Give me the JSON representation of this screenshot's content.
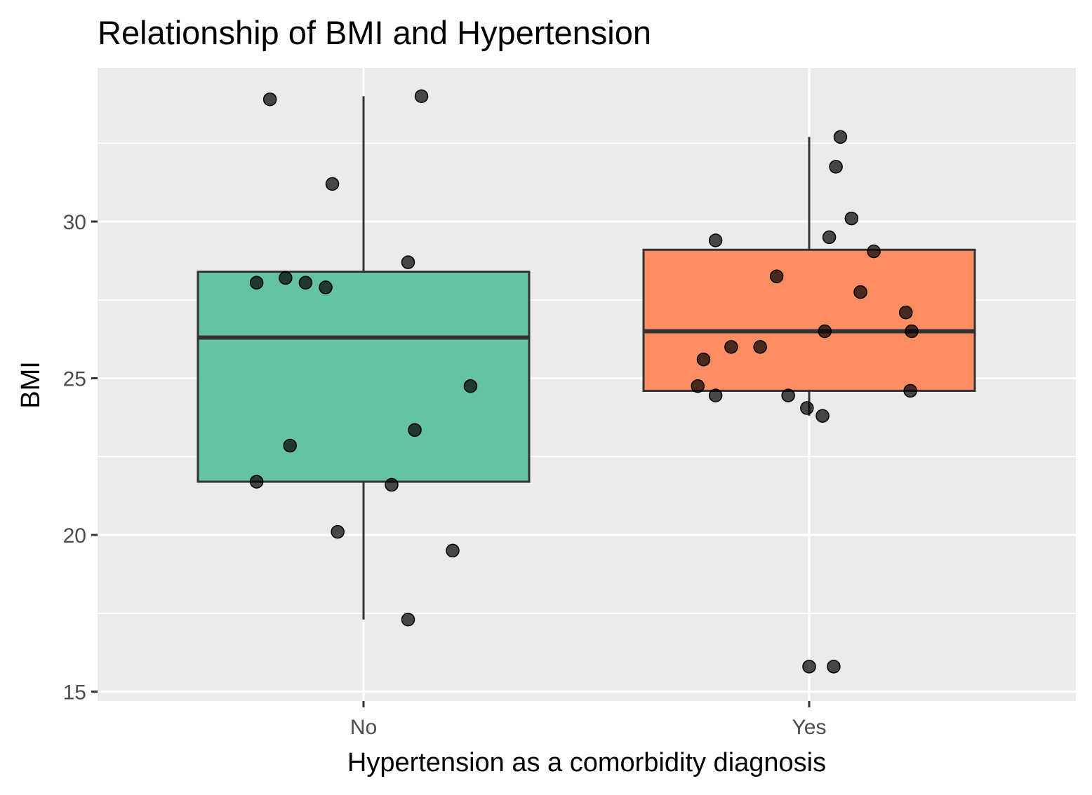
{
  "chart_data": {
    "type": "box",
    "title": "Relationship of BMI and Hypertension",
    "xlabel": "Hypertension as a comorbidity diagnosis",
    "ylabel": "BMI",
    "ylim": [
      14.7,
      34.9
    ],
    "y_ticks": [
      "15",
      "20",
      "25",
      "30"
    ],
    "y_tick_values": [
      15,
      20,
      25,
      30
    ],
    "y_minor_values": [
      17.5,
      22.5,
      27.5,
      32.5
    ],
    "categories": [
      "No",
      "Yes"
    ],
    "panel_background": "#EBEBEB",
    "grid": true,
    "outline_color": "#333333",
    "point_color": "#000000",
    "series": [
      {
        "category": "No",
        "fill": "#66C2A5",
        "whisker_low": 17.3,
        "q1": 21.7,
        "median": 26.3,
        "q3": 28.4,
        "whisker_high": 34.0,
        "points": [
          {
            "jitter": -0.21,
            "y": 33.9
          },
          {
            "jitter": 0.13,
            "y": 34.0
          },
          {
            "jitter": -0.07,
            "y": 31.2
          },
          {
            "jitter": 0.1,
            "y": 28.7
          },
          {
            "jitter": -0.24,
            "y": 28.05
          },
          {
            "jitter": -0.175,
            "y": 28.2
          },
          {
            "jitter": -0.13,
            "y": 28.05
          },
          {
            "jitter": -0.085,
            "y": 27.9
          },
          {
            "jitter": 0.24,
            "y": 24.75
          },
          {
            "jitter": 0.115,
            "y": 23.35
          },
          {
            "jitter": -0.165,
            "y": 22.85
          },
          {
            "jitter": -0.24,
            "y": 21.7
          },
          {
            "jitter": 0.063,
            "y": 21.6
          },
          {
            "jitter": -0.058,
            "y": 20.1
          },
          {
            "jitter": 0.2,
            "y": 19.5
          },
          {
            "jitter": 0.1,
            "y": 17.3
          }
        ]
      },
      {
        "category": "Yes",
        "fill": "#FC8D62",
        "whisker_low": 23.8,
        "q1": 24.6,
        "median": 26.5,
        "q3": 29.1,
        "whisker_high": 32.7,
        "points": [
          {
            "jitter": 0.07,
            "y": 32.7
          },
          {
            "jitter": 0.06,
            "y": 31.75
          },
          {
            "jitter": 0.095,
            "y": 30.1
          },
          {
            "jitter": -0.21,
            "y": 29.4
          },
          {
            "jitter": 0.045,
            "y": 29.5
          },
          {
            "jitter": 0.145,
            "y": 29.05
          },
          {
            "jitter": -0.073,
            "y": 28.25
          },
          {
            "jitter": 0.115,
            "y": 27.75
          },
          {
            "jitter": 0.217,
            "y": 27.1
          },
          {
            "jitter": 0.035,
            "y": 26.5
          },
          {
            "jitter": 0.23,
            "y": 26.5
          },
          {
            "jitter": -0.175,
            "y": 26.0
          },
          {
            "jitter": -0.11,
            "y": 26.0
          },
          {
            "jitter": -0.237,
            "y": 25.6
          },
          {
            "jitter": -0.25,
            "y": 24.75
          },
          {
            "jitter": -0.21,
            "y": 24.45
          },
          {
            "jitter": -0.047,
            "y": 24.45
          },
          {
            "jitter": 0.227,
            "y": 24.6
          },
          {
            "jitter": -0.005,
            "y": 24.05
          },
          {
            "jitter": 0.03,
            "y": 23.8
          },
          {
            "jitter": 0.0,
            "y": 15.8
          },
          {
            "jitter": 0.055,
            "y": 15.8
          }
        ]
      }
    ]
  }
}
